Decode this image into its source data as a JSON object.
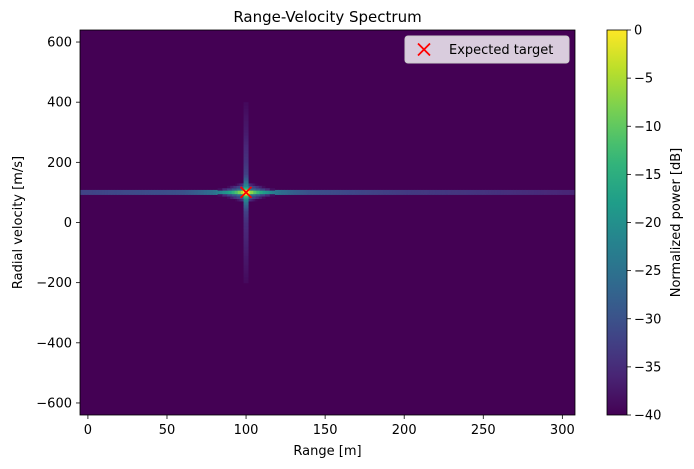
{
  "chart_data": {
    "type": "heatmap",
    "title": "Range-Velocity Spectrum",
    "xlabel": "Range [m]",
    "ylabel": "Radial velocity [m/s]",
    "xlim": [
      -5,
      308
    ],
    "ylim": [
      -640,
      640
    ],
    "x_ticks": [
      0,
      50,
      100,
      150,
      200,
      250,
      300
    ],
    "x_tick_labels": [
      "0",
      "50",
      "100",
      "150",
      "200",
      "250",
      "300"
    ],
    "y_ticks": [
      600,
      400,
      200,
      0,
      -200,
      -400,
      -600
    ],
    "y_tick_labels": [
      "600",
      "400",
      "200",
      "0",
      "−200",
      "−400",
      "−600"
    ],
    "colorbar": {
      "label": "Normalized power [dB]",
      "range": [
        -40,
        0
      ],
      "ticks": [
        0,
        -5,
        -10,
        -15,
        -20,
        -25,
        -30,
        -35,
        -40
      ],
      "tick_labels": [
        "0",
        "−5",
        "−10",
        "−15",
        "−20",
        "−25",
        "−30",
        "−35",
        "−40"
      ],
      "colormap": "viridis"
    },
    "background_db": -40,
    "peak": {
      "range": 100,
      "velocity": 100,
      "power_db": 0
    },
    "range_cut_at_peak_velocity": {
      "x": [
        -5,
        60,
        70,
        80,
        85,
        90,
        95,
        100,
        105,
        110,
        115,
        120,
        130,
        140,
        160,
        200,
        250,
        308
      ],
      "db": [
        -32,
        -30,
        -28,
        -25,
        -21,
        -17,
        -10,
        0,
        -10,
        -17,
        -21,
        -25,
        -28,
        -30,
        -31,
        -33,
        -34,
        -36
      ]
    },
    "velocity_cut_at_peak_range": {
      "y": [
        -200,
        -100,
        0,
        40,
        60,
        80,
        100,
        120,
        140,
        160,
        200,
        300,
        400
      ],
      "db": [
        -39,
        -37,
        -35,
        -32,
        -27,
        -20,
        0,
        -20,
        -27,
        -32,
        -34,
        -37,
        -39
      ]
    },
    "legend": {
      "position": "top-right",
      "entries": [
        {
          "label": "Expected target",
          "marker": "x",
          "color": "#ff0000"
        }
      ]
    },
    "markers": [
      {
        "name": "Expected target",
        "x": 100,
        "y": 100,
        "color": "#ff0000"
      }
    ],
    "grid": false
  }
}
